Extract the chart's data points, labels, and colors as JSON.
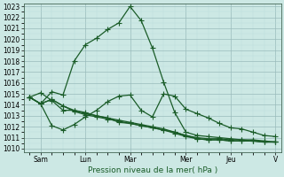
{
  "background_color": "#cce8e4",
  "grid_color_major": "#99bbbb",
  "grid_color_minor": "#bbdddd",
  "line_color": "#1a5c28",
  "marker": "+",
  "markersize": 4,
  "linewidth": 0.9,
  "xlabel": "Pression niveau de la mer( hPa )",
  "ylim": [
    1010,
    1023
  ],
  "yticks": [
    1010,
    1011,
    1012,
    1013,
    1014,
    1015,
    1016,
    1017,
    1018,
    1019,
    1020,
    1021,
    1022,
    1023
  ],
  "xtick_labels": [
    "Sam",
    "Lun",
    "Mar",
    "Mer",
    "Jeu",
    "V"
  ],
  "series": [
    [
      1014.7,
      1014.1,
      1015.2,
      1014.9,
      1018.0,
      1019.5,
      1020.1,
      1020.9,
      1021.5,
      1023.0,
      1021.7,
      1019.2,
      1016.1,
      1013.3,
      1011.5,
      1011.2,
      1011.1,
      1011.0,
      1010.9,
      1010.8,
      1010.7,
      1010.6,
      1010.6
    ],
    [
      1014.7,
      1014.1,
      1014.5,
      1013.9,
      1013.5,
      1013.2,
      1013.0,
      1012.8,
      1012.6,
      1012.4,
      1012.2,
      1012.0,
      1011.8,
      1011.5,
      1011.2,
      1011.0,
      1010.9,
      1010.9,
      1010.8,
      1010.8,
      1010.8,
      1010.7,
      1010.6
    ],
    [
      1014.7,
      1014.1,
      1014.5,
      1013.9,
      1013.4,
      1013.1,
      1012.9,
      1012.7,
      1012.5,
      1012.3,
      1012.1,
      1011.9,
      1011.7,
      1011.4,
      1011.1,
      1010.9,
      1010.8,
      1010.8,
      1010.7,
      1010.7,
      1010.7,
      1010.6,
      1010.6
    ],
    [
      1014.7,
      1015.1,
      1014.4,
      1013.5,
      1013.5,
      1013.3,
      1013.0,
      1012.8,
      1012.4,
      1012.3,
      1012.1,
      1011.9,
      1011.7,
      1011.5,
      1011.2,
      1010.9,
      1010.8,
      1010.8,
      1010.7,
      1010.7,
      1010.7,
      1010.6,
      1010.6
    ]
  ],
  "series2": [
    [
      1014.7,
      1014.1,
      1012.1,
      1011.7,
      1012.2,
      1012.9,
      1013.5,
      1014.3,
      1014.8,
      1014.9,
      1013.5,
      1012.9,
      1015.0,
      1014.8,
      1013.6,
      1013.2,
      1012.8,
      1012.3,
      1011.9,
      1011.8,
      1011.5,
      1011.2,
      1011.1
    ]
  ],
  "n_points": 23,
  "x_tick_positions": [
    1,
    5,
    9,
    14,
    18,
    22
  ],
  "tick_fontsize": 5.5,
  "xlabel_fontsize": 6.5
}
